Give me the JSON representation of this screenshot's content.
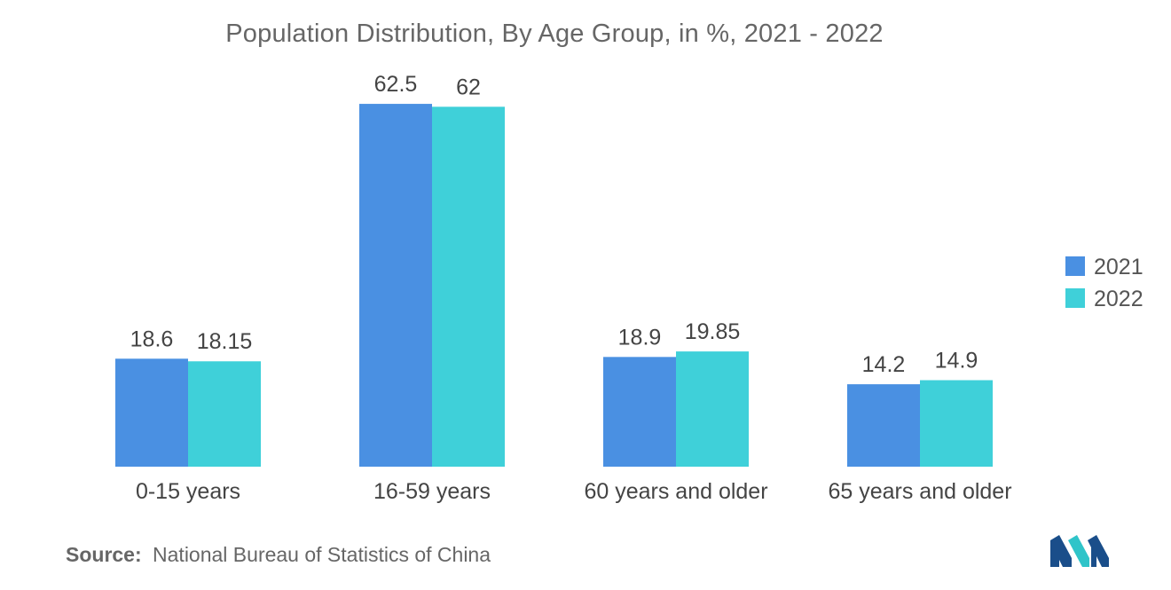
{
  "title": "Population Distribution, By Age Group, in %, 2021 - 2022",
  "source": {
    "label": "Source:",
    "text": "National Bureau of Statistics of China"
  },
  "logo": {
    "name": "mordor-intelligence-logo",
    "colors": [
      "#1a4e8a",
      "#2fc4c9"
    ]
  },
  "chart_data": {
    "type": "bar",
    "categories": [
      "0-15 years",
      "16-59 years",
      "60 years and older",
      "65 years and older"
    ],
    "series": [
      {
        "name": "2021",
        "values": [
          18.6,
          62.5,
          18.9,
          14.2
        ],
        "color": "#4a90e2"
      },
      {
        "name": "2022",
        "values": [
          18.15,
          62,
          19.85,
          14.9
        ],
        "color": "#3fd0d9"
      }
    ],
    "value_labels": [
      [
        "18.6",
        "62.5",
        "18.9",
        "14.2"
      ],
      [
        "18.15",
        "62",
        "19.85",
        "14.9"
      ]
    ],
    "ylim": [
      0,
      70
    ],
    "grid": false,
    "y_axis_visible": false,
    "legend_position": "right"
  }
}
